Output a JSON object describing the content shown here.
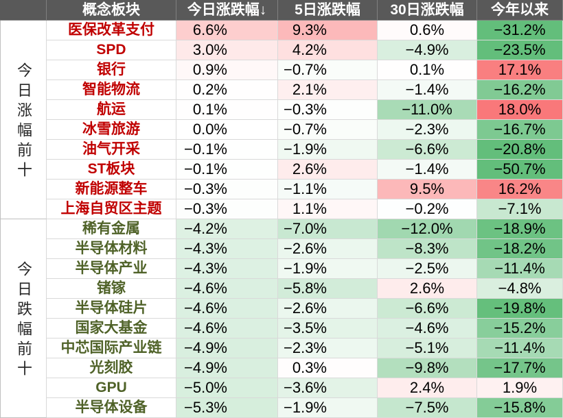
{
  "colors": {
    "header_bg": "#595959",
    "header_text": "#FFFFFF",
    "gainer_name": "#C00000",
    "loser_name": "#4F6228",
    "group_label": "#262626",
    "positive": "#F8696B",
    "negative": "#63BE7B",
    "neutral": "#FFFFFF"
  },
  "chart_data": {
    "type": "table",
    "unit": "%",
    "columns": [
      "概念板块",
      "今日涨跌幅↓",
      "5日涨跌幅",
      "30日涨跌幅",
      "今年以来"
    ],
    "groups": [
      {
        "label": "今日涨幅前十",
        "rows": [
          {
            "name": "医保改革支付",
            "values": [
              6.6,
              9.3,
              0.6,
              -31.2
            ]
          },
          {
            "name": "SPD",
            "values": [
              3.0,
              4.2,
              -4.9,
              -23.5
            ]
          },
          {
            "name": "银行",
            "values": [
              0.9,
              -0.7,
              0.1,
              17.1
            ]
          },
          {
            "name": "智能物流",
            "values": [
              0.2,
              2.1,
              -1.4,
              -16.2
            ]
          },
          {
            "name": "航运",
            "values": [
              0.1,
              -0.3,
              -11.0,
              18.0
            ]
          },
          {
            "name": "冰雪旅游",
            "values": [
              0.0,
              -0.7,
              -2.3,
              -16.7
            ]
          },
          {
            "name": "油气开采",
            "values": [
              -0.1,
              -1.9,
              -6.6,
              -20.8
            ]
          },
          {
            "name": "ST板块",
            "values": [
              -0.1,
              2.6,
              -1.4,
              -50.7
            ]
          },
          {
            "name": "新能源整车",
            "values": [
              -0.3,
              -1.1,
              9.5,
              16.2
            ]
          },
          {
            "name": "上海自贸区主题",
            "values": [
              -0.3,
              1.1,
              -0.2,
              -7.1
            ]
          }
        ]
      },
      {
        "label": "今日跌幅前十",
        "rows": [
          {
            "name": "稀有金属",
            "values": [
              -4.2,
              -7.0,
              -12.0,
              -18.9
            ]
          },
          {
            "name": "半导体材料",
            "values": [
              -4.3,
              -2.6,
              -8.3,
              -18.2
            ]
          },
          {
            "name": "半导体产业",
            "values": [
              -4.3,
              -1.9,
              -2.5,
              -11.4
            ]
          },
          {
            "name": "锗镓",
            "values": [
              -4.6,
              -5.8,
              2.6,
              -4.8
            ]
          },
          {
            "name": "半导体硅片",
            "values": [
              -4.6,
              -2.6,
              -6.6,
              -19.8
            ]
          },
          {
            "name": "国家大基金",
            "values": [
              -4.6,
              -3.5,
              -4.6,
              -15.2
            ]
          },
          {
            "name": "中芯国际产业链",
            "values": [
              -4.9,
              -2.3,
              -5.1,
              -11.4
            ]
          },
          {
            "name": "光刻胶",
            "values": [
              -4.9,
              0.3,
              -9.8,
              -17.7
            ]
          },
          {
            "name": "GPU",
            "values": [
              -5.0,
              -3.6,
              2.4,
              1.9
            ]
          },
          {
            "name": "半导体设备",
            "values": [
              -5.3,
              -1.9,
              -7.5,
              -15.8
            ]
          }
        ]
      }
    ]
  }
}
